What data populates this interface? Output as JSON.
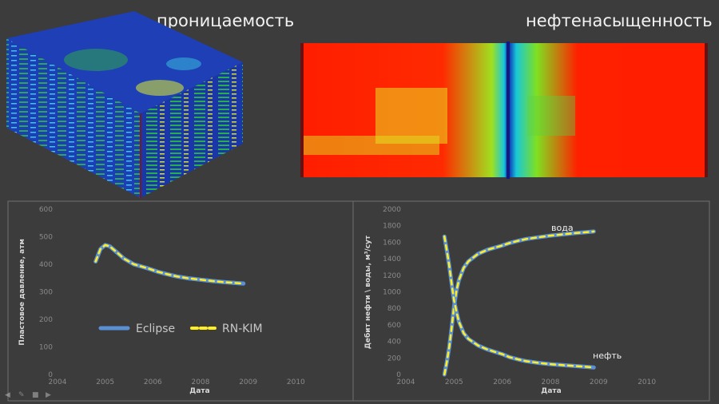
{
  "headings": {
    "permeability": "проницаемость",
    "oil_saturation": "нефтенасыщенность"
  },
  "colors": {
    "eclipse": "#5b8fd4",
    "rnkim": "#ffee22",
    "grid_blue": "#1c3fb8",
    "sat_red": "#ff1e00"
  },
  "chart_data": [
    {
      "type": "line",
      "xlabel": "Дата",
      "ylabel": "Пластовое давление, атм",
      "xlim": [
        2004,
        2010
      ],
      "ylim": [
        0,
        600
      ],
      "xticks": [
        "2004",
        "2005",
        "2006",
        "2008",
        "2009",
        "2010"
      ],
      "yticks": [
        "0",
        "100",
        "200",
        "300",
        "400",
        "500",
        "600"
      ],
      "grid": false,
      "legend_position": "center-left",
      "x": [
        2004.8,
        2004.9,
        2005.0,
        2005.1,
        2005.2,
        2005.4,
        2005.6,
        2005.9,
        2006.2,
        2006.6,
        2007.0,
        2007.5,
        2008.0,
        2008.5,
        2009.0,
        2009.5,
        2009.8
      ],
      "series": [
        {
          "name": "Eclipse",
          "values": [
            410,
            455,
            470,
            465,
            450,
            420,
            400,
            385,
            373,
            364,
            356,
            349,
            344,
            339,
            335,
            332,
            330
          ]
        },
        {
          "name": "RN-KIM",
          "values": [
            410,
            455,
            470,
            465,
            450,
            420,
            400,
            385,
            373,
            364,
            356,
            349,
            344,
            339,
            335,
            332,
            330
          ]
        }
      ]
    },
    {
      "type": "line",
      "xlabel": "Дата",
      "ylabel": "Дебит нефти \\ воды, м³/сут",
      "xlim": [
        2004,
        2010
      ],
      "ylim": [
        0,
        2000
      ],
      "xticks": [
        "2004",
        "2005",
        "2006",
        "2008",
        "2009",
        "2010"
      ],
      "yticks": [
        "0",
        "200",
        "400",
        "600",
        "800",
        "1000",
        "1200",
        "1400",
        "1600",
        "1800",
        "2000"
      ],
      "grid": false,
      "annotations": [
        {
          "text": "вода",
          "x": 2006.6,
          "y": 1790
        },
        {
          "text": "нефть",
          "x": 2007.6,
          "y": 200
        }
      ],
      "x": [
        2004.8,
        2004.85,
        2004.9,
        2004.95,
        2005.0,
        2005.05,
        2005.1,
        2005.2,
        2005.3,
        2005.5,
        2005.7,
        2006.0,
        2006.3,
        2006.7,
        2007.0,
        2007.5,
        2008.0,
        2008.5,
        2009.0,
        2009.5,
        2009.8
      ],
      "series": [
        {
          "name": "вода",
          "values": [
            0,
            150,
            330,
            560,
            820,
            1010,
            1140,
            1290,
            1370,
            1460,
            1510,
            1560,
            1590,
            1620,
            1640,
            1660,
            1680,
            1695,
            1710,
            1722,
            1730
          ]
        },
        {
          "name": "нефть",
          "values": [
            1670,
            1500,
            1320,
            1100,
            900,
            760,
            640,
            500,
            430,
            350,
            300,
            245,
            210,
            180,
            160,
            140,
            125,
            113,
            102,
            92,
            85
          ]
        }
      ]
    }
  ]
}
